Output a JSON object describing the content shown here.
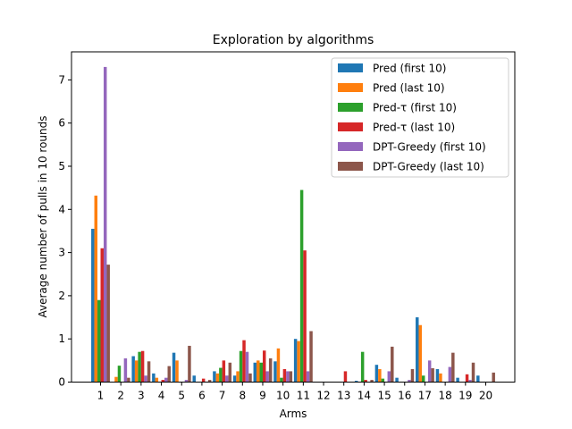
{
  "chart_data": {
    "type": "bar",
    "title": "Exploration by algorithms",
    "xlabel": "Arms",
    "ylabel": "Average number of pulls in 10 rounds",
    "categories": [
      "1",
      "2",
      "3",
      "4",
      "5",
      "6",
      "7",
      "8",
      "9",
      "10",
      "11",
      "12",
      "13",
      "14",
      "15",
      "16",
      "17",
      "18",
      "19",
      "20"
    ],
    "ylim": [
      0,
      7.65
    ],
    "yticks": [
      0,
      1,
      2,
      3,
      4,
      5,
      6,
      7
    ],
    "grid": false,
    "legend_position": "top-right",
    "series": [
      {
        "name": "Pred (first 10)",
        "color": "#1f77b4",
        "values": [
          3.55,
          0.0,
          0.6,
          0.2,
          0.68,
          0.15,
          0.25,
          0.15,
          0.45,
          0.48,
          1.0,
          0.0,
          0.0,
          0.03,
          0.4,
          0.1,
          1.5,
          0.3,
          0.1,
          0.15
        ]
      },
      {
        "name": "Pred (last 10)",
        "color": "#ff7f0e",
        "values": [
          4.32,
          0.12,
          0.5,
          0.1,
          0.5,
          0.0,
          0.2,
          0.25,
          0.5,
          0.78,
          0.95,
          0.0,
          0.0,
          0.0,
          0.3,
          0.0,
          1.32,
          0.2,
          0.0,
          0.0
        ]
      },
      {
        "name": "Pred-τ (first 10)",
        "color": "#2ca02c",
        "values": [
          1.9,
          0.38,
          0.7,
          0.0,
          0.0,
          0.0,
          0.33,
          0.72,
          0.45,
          0.1,
          4.45,
          0.0,
          0.0,
          0.7,
          0.08,
          0.0,
          0.15,
          0.0,
          0.0,
          0.0
        ]
      },
      {
        "name": "Pred-τ (last 10)",
        "color": "#d62728",
        "values": [
          3.1,
          0.0,
          0.72,
          0.05,
          0.0,
          0.08,
          0.5,
          0.97,
          0.73,
          0.3,
          3.05,
          0.0,
          0.25,
          0.05,
          0.0,
          0.0,
          0.0,
          0.0,
          0.18,
          0.0
        ]
      },
      {
        "name": "DPT-Greedy (first 10)",
        "color": "#9467bd",
        "values": [
          7.3,
          0.55,
          0.15,
          0.1,
          0.05,
          0.0,
          0.15,
          0.7,
          0.25,
          0.25,
          0.25,
          0.0,
          0.0,
          0.0,
          0.25,
          0.05,
          0.5,
          0.35,
          0.05,
          0.0
        ]
      },
      {
        "name": "DPT-Greedy (last 10)",
        "color": "#8c564b",
        "values": [
          2.72,
          0.1,
          0.48,
          0.37,
          0.84,
          0.05,
          0.45,
          0.2,
          0.55,
          0.25,
          1.18,
          0.0,
          0.0,
          0.05,
          0.82,
          0.3,
          0.32,
          0.68,
          0.45,
          0.22
        ]
      }
    ]
  }
}
